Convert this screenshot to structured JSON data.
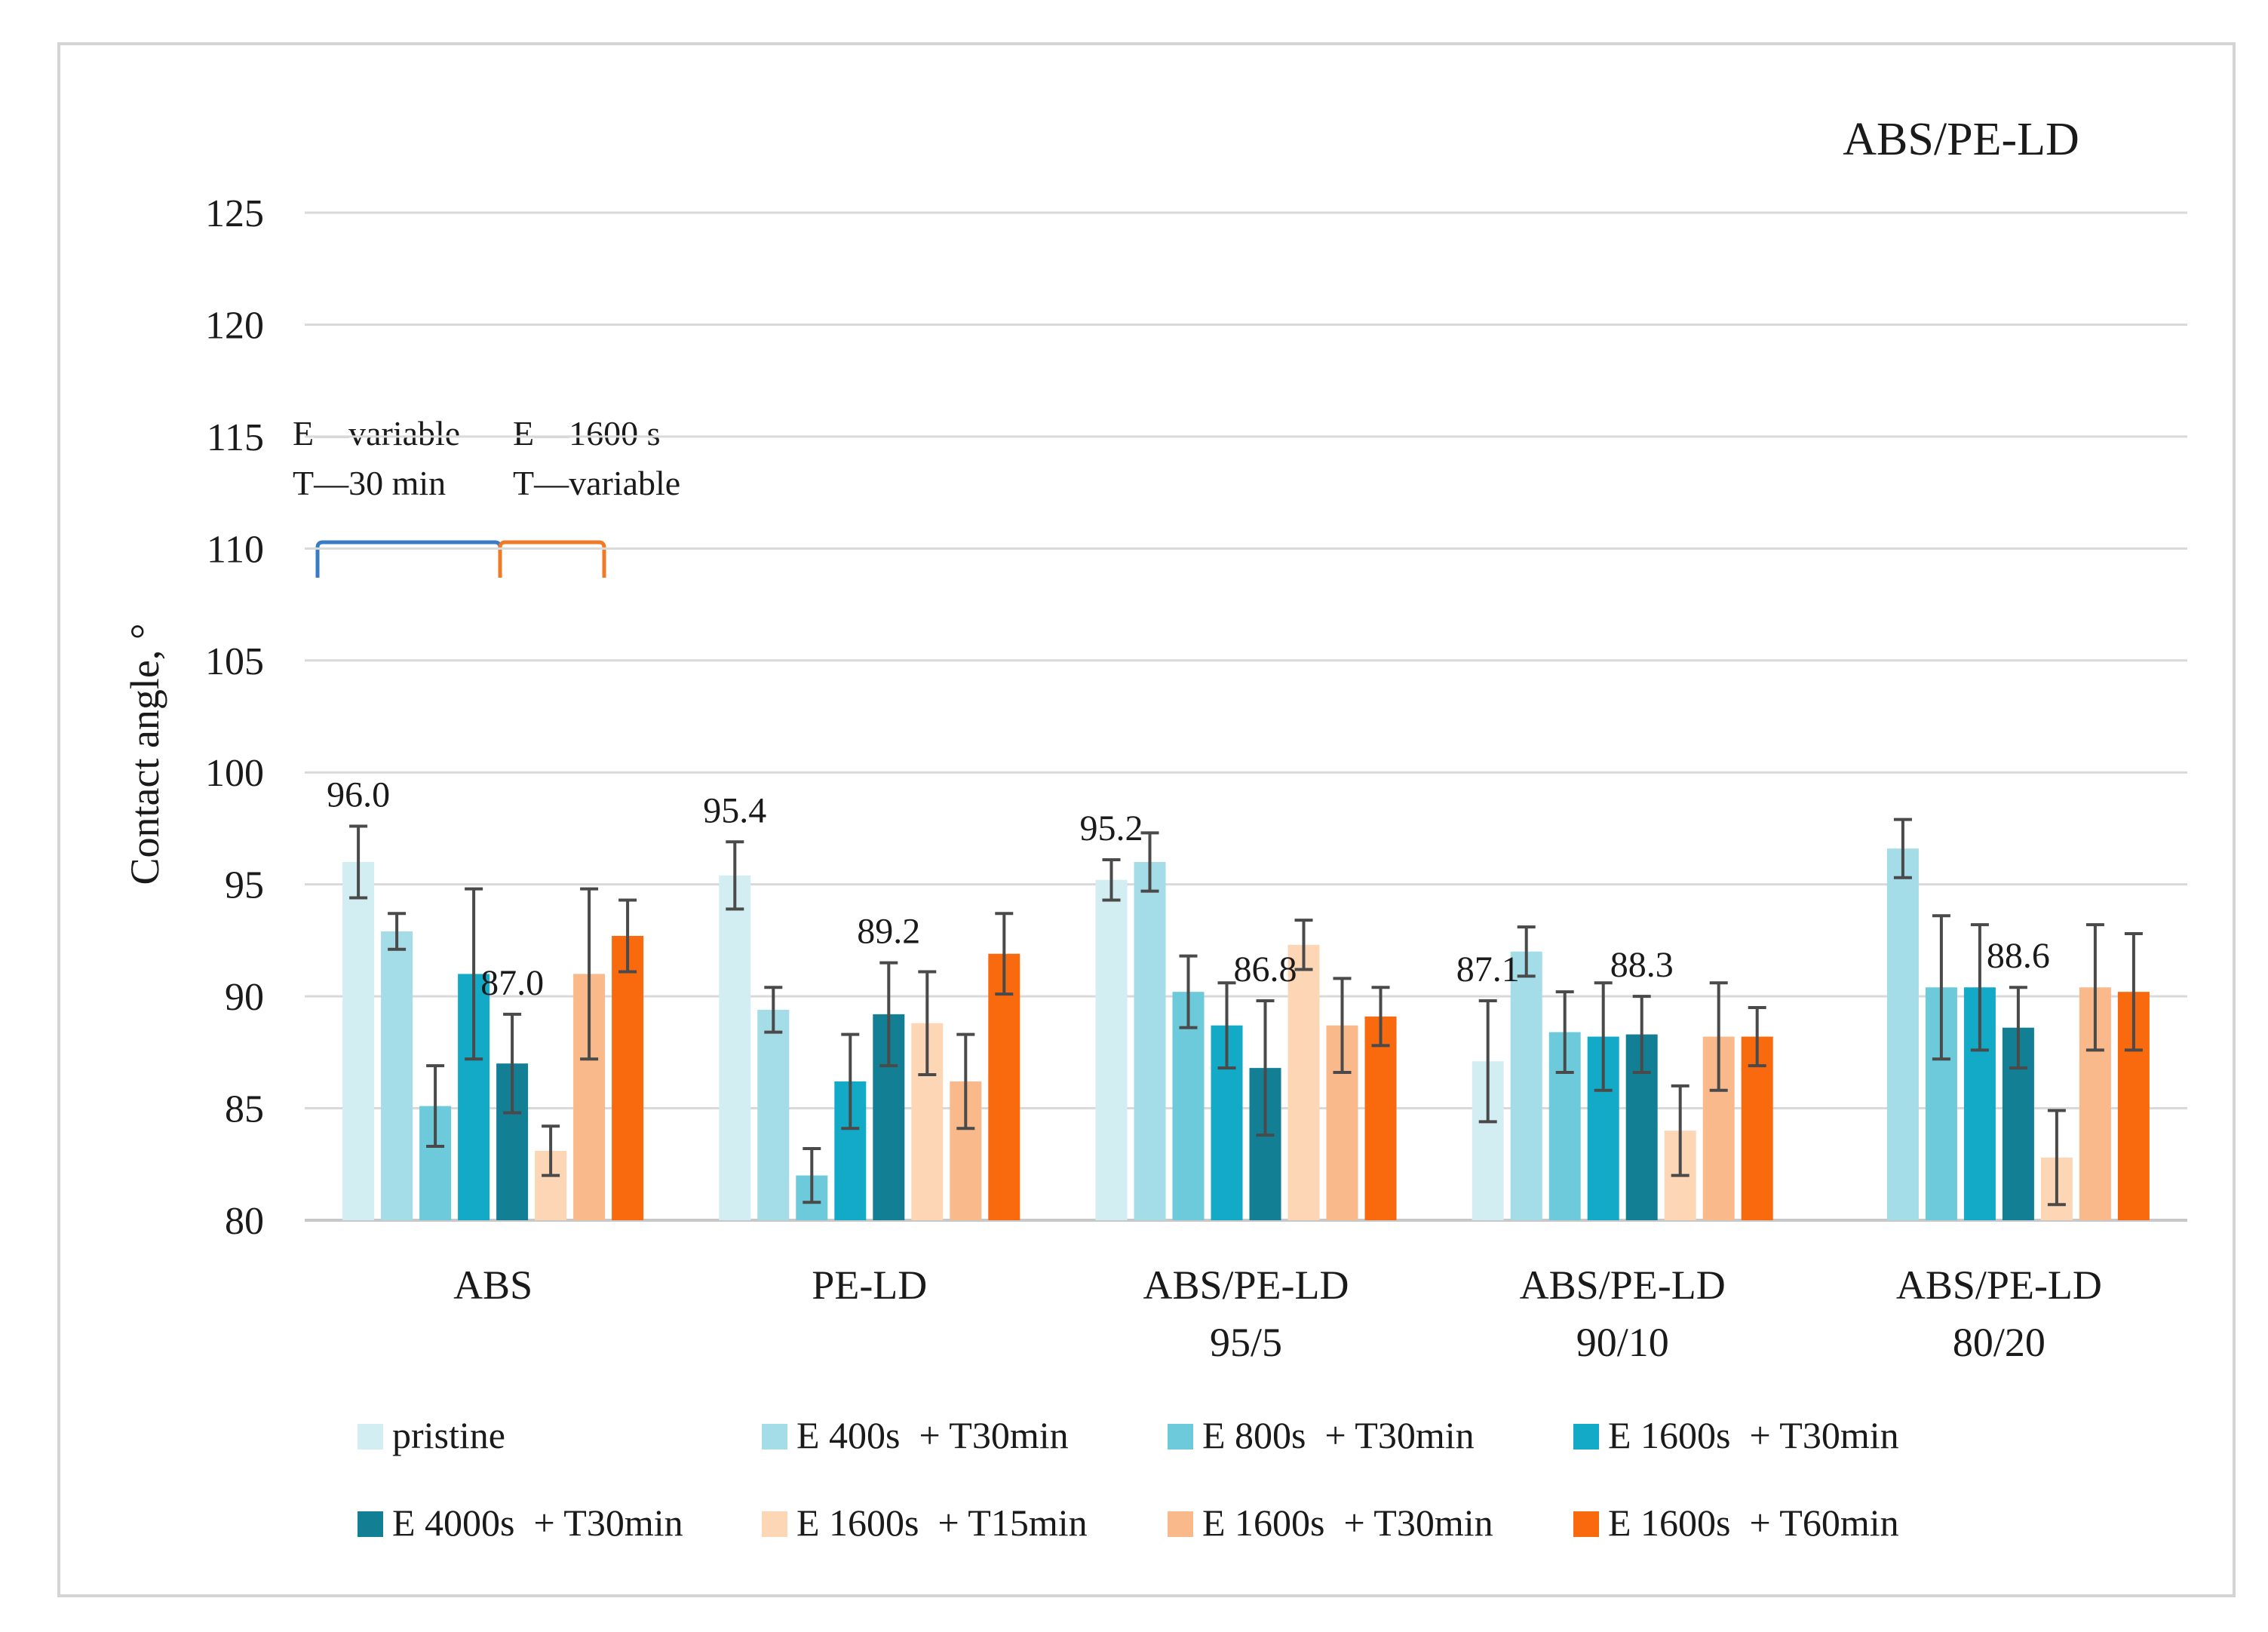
{
  "chart_data": {
    "type": "bar",
    "title": "ABS/PE-LD",
    "ylabel": "Contact angle, °",
    "xlabel": "",
    "ylim": [
      80,
      125
    ],
    "yticks": [
      80,
      85,
      90,
      95,
      100,
      105,
      110,
      115,
      120,
      125
    ],
    "grid": true,
    "legend_position": "bottom",
    "categories": [
      [
        "ABS"
      ],
      [
        "PE-LD"
      ],
      [
        "ABS/PE-LD",
        "95/5"
      ],
      [
        "ABS/PE-LD",
        "90/10"
      ],
      [
        "ABS/PE-LD",
        "80/20"
      ]
    ],
    "series": [
      {
        "name": "pristine",
        "color": "#d3eef3",
        "values": [
          96.0,
          95.4,
          95.2,
          87.1,
          null
        ],
        "errors": [
          1.6,
          1.5,
          0.9,
          2.7,
          null
        ]
      },
      {
        "name": "E 400s  + T30min",
        "color": "#a4dce7",
        "values": [
          92.9,
          89.4,
          96.0,
          92.0,
          96.6
        ],
        "errors": [
          0.8,
          1.0,
          1.3,
          1.1,
          1.3
        ]
      },
      {
        "name": "E 800s  + T30min",
        "color": "#6ccadb",
        "values": [
          85.1,
          82.0,
          90.2,
          88.4,
          90.4
        ],
        "errors": [
          1.8,
          1.2,
          1.6,
          1.8,
          3.2
        ]
      },
      {
        "name": "E 1600s  + T30min",
        "color": "#12aac6",
        "values": [
          91.0,
          86.2,
          88.7,
          88.2,
          90.4
        ],
        "errors": [
          3.8,
          2.1,
          1.9,
          2.4,
          2.8
        ]
      },
      {
        "name": "E 4000s  + T30min",
        "color": "#127f94",
        "values": [
          87.0,
          89.2,
          86.8,
          88.3,
          88.6
        ],
        "errors": [
          2.2,
          2.3,
          3.0,
          1.7,
          1.8
        ]
      },
      {
        "name": "E 1600s  + T15min",
        "color": "#fdd7b5",
        "values": [
          83.1,
          88.8,
          92.3,
          84.0,
          82.8
        ],
        "errors": [
          1.1,
          2.3,
          1.1,
          2.0,
          2.1
        ]
      },
      {
        "name": "E 1600s  + T30min",
        "color": "#f9b98a",
        "values": [
          91.0,
          86.2,
          88.7,
          88.2,
          90.4
        ],
        "errors": [
          3.8,
          2.1,
          2.1,
          2.4,
          2.8
        ]
      },
      {
        "name": "E 1600s  + T60min",
        "color": "#f96a0e",
        "values": [
          92.7,
          91.9,
          89.1,
          88.2,
          90.2
        ],
        "errors": [
          1.6,
          1.8,
          1.3,
          1.3,
          2.6
        ]
      }
    ],
    "data_labels": [
      {
        "category_index": 0,
        "series_index": 0,
        "text": "96.0"
      },
      {
        "category_index": 0,
        "series_index": 4,
        "text": "87.0"
      },
      {
        "category_index": 1,
        "series_index": 0,
        "text": "95.4"
      },
      {
        "category_index": 1,
        "series_index": 4,
        "text": "89.2"
      },
      {
        "category_index": 2,
        "series_index": 0,
        "text": "95.2"
      },
      {
        "category_index": 2,
        "series_index": 4,
        "text": "86.8"
      },
      {
        "category_index": 3,
        "series_index": 0,
        "text": "87.1"
      },
      {
        "category_index": 3,
        "series_index": 4,
        "text": "88.3"
      },
      {
        "category_index": 4,
        "series_index": 4,
        "text": "88.6"
      }
    ],
    "annotations": {
      "group1_line1": "E—variable",
      "group1_line2": "T—30 min",
      "group1_color": "#3a7cc4",
      "group2_line1": "E—1600 s",
      "group2_line2": "T—variable",
      "group2_color": "#f07a25"
    }
  }
}
